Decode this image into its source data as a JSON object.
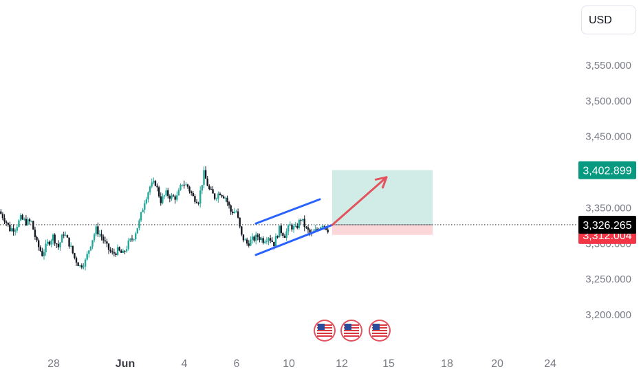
{
  "currency": "USD",
  "colors": {
    "up": "#26a69a",
    "down": "#131722",
    "channel": "#2962ff",
    "arrow": "#e2535d",
    "target_zone": "#d1ebe6",
    "stop_zone": "#fbd7da",
    "target_tag": "#089981",
    "stop_tag": "#f23645",
    "price_tag": "#000000"
  },
  "chart_data": {
    "type": "candlestick",
    "ylim": [
      3175,
      3600
    ],
    "y_ticks": [
      "3,550.000",
      "3,500.000",
      "3,450.000",
      "3,400.000",
      "3,350.000",
      "3,300.000",
      "3,250.000",
      "3,200.000"
    ],
    "x_ticks": [
      {
        "label": "28",
        "bold": false
      },
      {
        "label": "Jun",
        "bold": true
      },
      {
        "label": "4",
        "bold": false
      },
      {
        "label": "6",
        "bold": false
      },
      {
        "label": "10",
        "bold": false
      },
      {
        "label": "12",
        "bold": false
      },
      {
        "label": "15",
        "bold": false
      },
      {
        "label": "18",
        "bold": false
      },
      {
        "label": "20",
        "bold": false
      },
      {
        "label": "24",
        "bold": false
      }
    ],
    "price_path": [
      [
        3345,
        3340
      ],
      [
        3335,
        3300
      ],
      [
        3320,
        3310
      ],
      [
        3322,
        3318
      ],
      [
        3335,
        3330
      ],
      [
        3330,
        3330
      ],
      [
        3330,
        3310
      ],
      [
        3300,
        3270
      ],
      [
        3285,
        3280
      ],
      [
        3300,
        3295
      ],
      [
        3310,
        3305
      ],
      [
        3295,
        3290
      ],
      [
        3315,
        3310
      ],
      [
        3300,
        3285
      ],
      [
        3280,
        3260
      ],
      [
        3268,
        3250
      ],
      [
        3275,
        3270
      ],
      [
        3300,
        3295
      ],
      [
        3320,
        3320
      ],
      [
        3310,
        3300
      ],
      [
        3295,
        3290
      ],
      [
        3285,
        3275
      ],
      [
        3290,
        3290
      ],
      [
        3285,
        3270
      ],
      [
        3300,
        3290
      ],
      [
        3310,
        3310
      ],
      [
        3330,
        3340
      ],
      [
        3360,
        3375
      ],
      [
        3380,
        3390
      ],
      [
        3385,
        3375
      ],
      [
        3360,
        3355
      ],
      [
        3370,
        3355
      ],
      [
        3365,
        3365
      ],
      [
        3365,
        3370
      ],
      [
        3385,
        3380
      ],
      [
        3380,
        3385
      ],
      [
        3365,
        3370
      ],
      [
        3360,
        3380
      ],
      [
        3398,
        3405
      ],
      [
        3375,
        3355
      ],
      [
        3365,
        3350
      ],
      [
        3372,
        3370
      ],
      [
        3365,
        3360
      ],
      [
        3345,
        3338
      ],
      [
        3345,
        3338
      ],
      [
        3310,
        3290
      ],
      [
        3300,
        3298
      ],
      [
        3305,
        3300
      ],
      [
        3310,
        3300
      ],
      [
        3305,
        3302
      ],
      [
        3310,
        3310
      ],
      [
        3300,
        3295
      ],
      [
        3320,
        3320
      ],
      [
        3312,
        3310
      ],
      [
        3325,
        3325
      ],
      [
        3320,
        3315
      ],
      [
        3335,
        3332
      ],
      [
        3320,
        3320
      ],
      [
        3312,
        3312
      ],
      [
        3320,
        3320
      ],
      [
        3328,
        3328
      ],
      [
        3320,
        3320
      ]
    ],
    "channel": {
      "upper": [
        [
          "Jun 6.8",
          3328
        ],
        [
          "Jun 11.6",
          3362
        ]
      ],
      "lower": [
        [
          "Jun 6.8",
          3284
        ],
        [
          "Jun 11.8",
          3326
        ]
      ]
    },
    "position": {
      "entry": 3326.265,
      "target": 3402.899,
      "stop": 3312.004,
      "start": "Jun 11.8",
      "end": "Jun 17.5"
    },
    "arrow": {
      "from": [
        3326,
        "Jun 11.8"
      ],
      "to": [
        3393,
        "Jun 13.8"
      ]
    },
    "price_labels": {
      "target": "3,402.899",
      "last": "3,326.265",
      "stop": "3,312.004"
    },
    "events": [
      "US",
      "US",
      "US"
    ]
  }
}
